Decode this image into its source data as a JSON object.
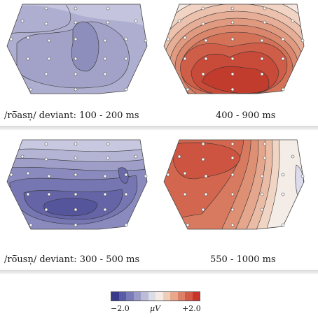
{
  "panels": [
    {
      "caption": "/rō̅asn̩/ deviant: 100 - 200 ms",
      "polarity": "blue"
    },
    {
      "caption": "400 - 900 ms",
      "polarity": "red"
    },
    {
      "caption": "/rō̅usn̩/ deviant: 300 - 500 ms",
      "polarity": "blue"
    },
    {
      "caption": "550 - 1000 ms",
      "polarity": "red"
    }
  ],
  "colorbar": {
    "min_label": "−2.0",
    "unit_label": "μV",
    "max_label": "+2.0",
    "min_value": -2.0,
    "max_value": 2.0,
    "colors": [
      "#3a3a8c",
      "#5a5aa6",
      "#7a7ab8",
      "#9a9ac8",
      "#bcbcd8",
      "#dcdce8",
      "#f4ece4",
      "#f0cdb8",
      "#e8a88c",
      "#de8068",
      "#d45a48",
      "#c83428"
    ]
  }
}
